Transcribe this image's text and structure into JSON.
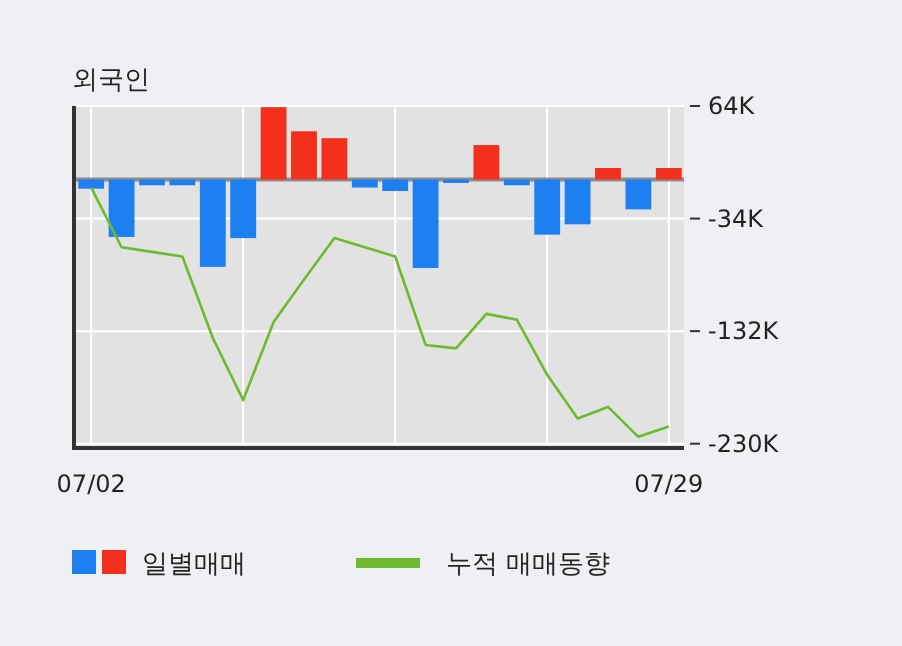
{
  "chart_data": {
    "type": "bar",
    "title": "외국인",
    "categories": [
      "07/02",
      null,
      null,
      null,
      null,
      null,
      null,
      null,
      null,
      null,
      null,
      null,
      null,
      null,
      null,
      null,
      null,
      null,
      null,
      "07/29"
    ],
    "series": [
      {
        "name": "일별매매",
        "colors": [
          "#1e7ff0",
          "#1e7ff0",
          "#1e7ff0",
          "#1e7ff0",
          "#1e7ff0",
          "#1e7ff0",
          "#f3301c",
          "#f3301c",
          "#f3301c",
          "#1e7ff0",
          "#1e7ff0",
          "#1e7ff0",
          "#1e7ff0",
          "#f3301c",
          "#1e7ff0",
          "#1e7ff0",
          "#1e7ff0",
          "#f3301c",
          "#1e7ff0",
          "#f3301c"
        ],
        "values": [
          -8,
          -50,
          -5,
          -5,
          -76,
          -51,
          63,
          42,
          36,
          -7,
          -10,
          -77,
          -3,
          30,
          -5,
          -48,
          -39,
          10,
          -26,
          10
        ]
      },
      {
        "name": "누적 매매동향",
        "type": "line",
        "color": "#6cbb2e",
        "values": [
          -7,
          -59,
          -63,
          -67,
          -138,
          -192,
          -124,
          -87,
          -51,
          -59,
          -67,
          -144,
          -147,
          -117,
          -122,
          -170,
          -208,
          -198,
          -224,
          -215
        ]
      }
    ],
    "ylim": [
      -232,
      64
    ],
    "yticks": [
      {
        "value": 64,
        "label": "64K"
      },
      {
        "value": -34,
        "label": "-34K"
      },
      {
        "value": -132,
        "label": "-132K"
      },
      {
        "value": -230,
        "label": "-230K"
      }
    ],
    "ref_lines": [
      {
        "axis": "y",
        "value": 0,
        "color": "#8c8c8c"
      }
    ],
    "grid": true,
    "legend": "bottom"
  }
}
